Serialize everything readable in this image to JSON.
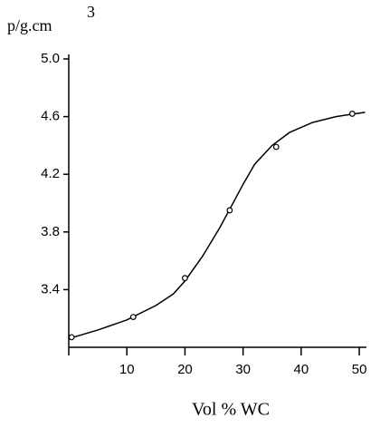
{
  "chart_data": {
    "type": "line",
    "ylabel": "p/g.cm",
    "ylabel_sup": "3",
    "xlabel": "Vol % WC",
    "xlim": [
      0,
      51
    ],
    "ylim": [
      3.0,
      5.0
    ],
    "xticks": [
      10,
      20,
      30,
      40,
      50
    ],
    "yticks": [
      3.4,
      3.8,
      4.2,
      4.6,
      {
        "value": 5,
        "label": "5.0"
      }
    ],
    "curve": {
      "x": [
        0,
        5,
        10,
        15,
        18,
        20,
        23,
        26,
        28,
        30,
        32,
        35,
        38,
        42,
        46,
        51
      ],
      "y": [
        3.06,
        3.12,
        3.19,
        3.29,
        3.37,
        3.46,
        3.63,
        3.83,
        3.98,
        4.13,
        4.27,
        4.4,
        4.49,
        4.56,
        4.6,
        4.63
      ]
    },
    "points": {
      "x": [
        0.5,
        11.1,
        20,
        27.7,
        35.7,
        48.8
      ],
      "y": [
        3.07,
        3.21,
        3.48,
        3.95,
        4.39,
        4.62
      ]
    },
    "color": "#000000"
  }
}
